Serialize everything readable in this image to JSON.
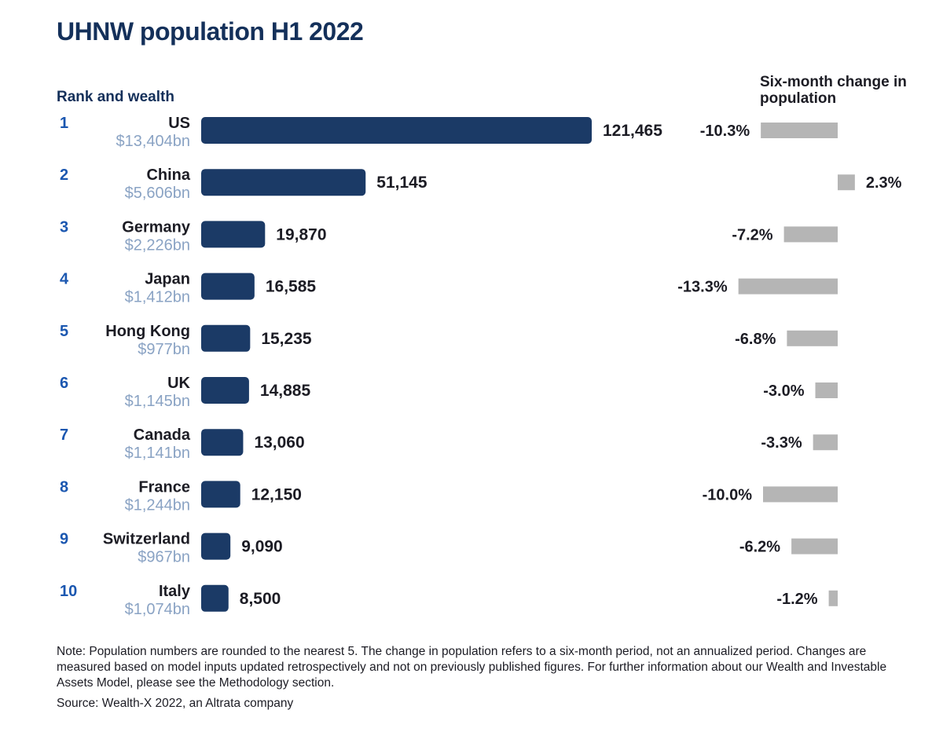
{
  "title": "UHNW population H1 2022",
  "left_header": "Rank and wealth",
  "right_header": "Six-month change in population",
  "note": "Note: Population numbers are rounded to the nearest 5. The change in population refers to a six-month period, not an annualized period. Changes are measured based on model inputs updated retrospectively and not on previously published figures. For further information about our Wealth and Investable Assets Model, please see the Methodology section.",
  "source": "Source: Wealth-X 2022, an Altrata company",
  "colors": {
    "bar": "#1b3a66",
    "change_bar": "#b5b5b5",
    "rank": "#1b57b0",
    "wealth": "#8aa3c4",
    "title": "#14305a"
  },
  "chart_data": {
    "type": "bar",
    "orientation": "horizontal",
    "title": "UHNW population H1 2022",
    "categories": [
      "US",
      "China",
      "Germany",
      "Japan",
      "Hong Kong",
      "UK",
      "Canada",
      "France",
      "Switzerland",
      "Italy"
    ],
    "ranks": [
      "1",
      "2",
      "3",
      "4",
      "5",
      "6",
      "7",
      "8",
      "9",
      "10"
    ],
    "wealth_labels": [
      "$13,404bn",
      "$5,606bn",
      "$2,226bn",
      "$1,412bn",
      "$977bn",
      "$1,145bn",
      "$1,141bn",
      "$1,244bn",
      "$967bn",
      "$1,074bn"
    ],
    "series": [
      {
        "name": "UHNW population",
        "values": [
          121465,
          51145,
          19870,
          16585,
          15235,
          14885,
          13060,
          12150,
          9090,
          8500
        ],
        "labels": [
          "121,465",
          "51,145",
          "19,870",
          "16,585",
          "15,235",
          "14,885",
          "13,060",
          "12,150",
          "9,090",
          "8,500"
        ]
      },
      {
        "name": "Six-month change in population (%)",
        "values": [
          -10.3,
          2.3,
          -7.2,
          -13.3,
          -6.8,
          -3.0,
          -3.3,
          -10.0,
          -6.2,
          -1.2
        ],
        "labels": [
          "-10.3%",
          "2.3%",
          "-7.2%",
          "-13.3%",
          "-6.8%",
          "-3.0%",
          "-3.3%",
          "-10.0%",
          "-6.2%",
          "-1.2%"
        ]
      }
    ],
    "xlim_population": [
      0,
      121465
    ],
    "xlim_change": [
      -13.3,
      2.3
    ]
  }
}
